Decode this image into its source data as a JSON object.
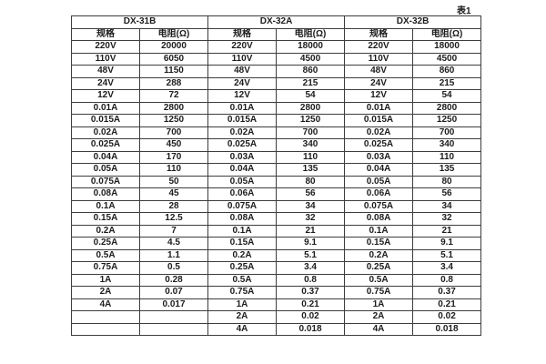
{
  "caption": "表1",
  "table": {
    "groups": [
      {
        "name": "DX-31B"
      },
      {
        "name": "DX-32A"
      },
      {
        "name": "DX-32B"
      }
    ],
    "col_headers": {
      "spec": "规格",
      "resistance": "电阻(Ω)"
    },
    "rows": [
      [
        "220V",
        "20000",
        "220V",
        "18000",
        "220V",
        "18000"
      ],
      [
        "110V",
        "6050",
        "110V",
        "4500",
        "110V",
        "4500"
      ],
      [
        "48V",
        "1150",
        "48V",
        "860",
        "48V",
        "860"
      ],
      [
        "24V",
        "288",
        "24V",
        "215",
        "24V",
        "215"
      ],
      [
        "12V",
        "72",
        "12V",
        "54",
        "12V",
        "54"
      ],
      [
        "0.01A",
        "2800",
        "0.01A",
        "2800",
        "0.01A",
        "2800"
      ],
      [
        "0.015A",
        "1250",
        "0.015A",
        "1250",
        "0.015A",
        "1250"
      ],
      [
        "0.02A",
        "700",
        "0.02A",
        "700",
        "0.02A",
        "700"
      ],
      [
        "0.025A",
        "450",
        "0.025A",
        "340",
        "0.025A",
        "340"
      ],
      [
        "0.04A",
        "170",
        "0.03A",
        "110",
        "0.03A",
        "110"
      ],
      [
        "0.05A",
        "110",
        "0.04A",
        "135",
        "0.04A",
        "135"
      ],
      [
        "0.075A",
        "50",
        "0.05A",
        "80",
        "0.05A",
        "80"
      ],
      [
        "0.08A",
        "45",
        "0.06A",
        "56",
        "0.06A",
        "56"
      ],
      [
        "0.1A",
        "28",
        "0.075A",
        "34",
        "0.075A",
        "34"
      ],
      [
        "0.15A",
        "12.5",
        "0.08A",
        "32",
        "0.08A",
        "32"
      ],
      [
        "0.2A",
        "7",
        "0.1A",
        "21",
        "0.1A",
        "21"
      ],
      [
        "0.25A",
        "4.5",
        "0.15A",
        "9.1",
        "0.15A",
        "9.1"
      ],
      [
        "0.5A",
        "1.1",
        "0.2A",
        "5.1",
        "0.2A",
        "5.1"
      ],
      [
        "0.75A",
        "0.5",
        "0.25A",
        "3.4",
        "0.25A",
        "3.4"
      ],
      [
        "1A",
        "0.28",
        "0.5A",
        "0.8",
        "0.5A",
        "0.8"
      ],
      [
        "2A",
        "0.07",
        "0.75A",
        "0.37",
        "0.75A",
        "0.37"
      ],
      [
        "4A",
        "0.017",
        "1A",
        "0.21",
        "1A",
        "0.21"
      ],
      [
        "",
        "",
        "2A",
        "0.02",
        "2A",
        "0.02"
      ],
      [
        "",
        "",
        "4A",
        "0.018",
        "4A",
        "0.018"
      ]
    ]
  },
  "colors": {
    "border": "#3d3d3d",
    "text": "#1c1c1c",
    "background": "#ffffff"
  }
}
